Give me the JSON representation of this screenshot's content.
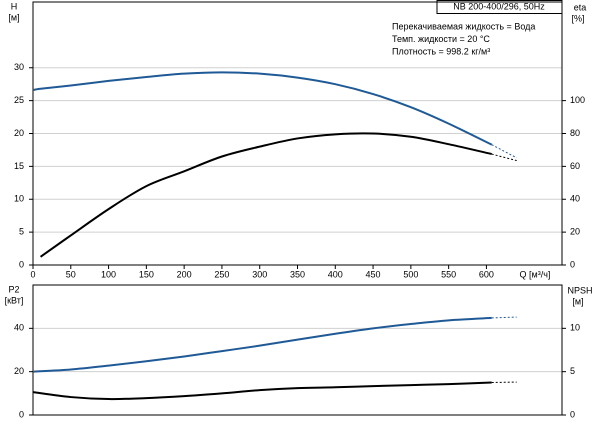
{
  "chart_data": [
    {
      "type": "line",
      "title": "NB 200-400/296, 50Hz",
      "annotations": [
        "Перекачиваемая жидкость = Вода",
        "Темп. жидкости = 20 °C",
        "Плотность = 998.2 кг/м³"
      ],
      "xlabel": "Q [м³/ч]",
      "ylabel": "H",
      "ylabel_unit": "[м]",
      "y2label": "eta",
      "y2label_unit": "[%]",
      "x": [
        0,
        10,
        50,
        100,
        150,
        200,
        250,
        300,
        350,
        400,
        450,
        500,
        550,
        607,
        640
      ],
      "xlim": [
        0,
        700
      ],
      "xticks": [
        0,
        50,
        100,
        150,
        200,
        250,
        300,
        350,
        400,
        450,
        500,
        550,
        600
      ],
      "ylim": [
        0,
        40
      ],
      "yticks": [
        0,
        5,
        10,
        15,
        20,
        25,
        30
      ],
      "y2lim": [
        0,
        160
      ],
      "y2ticks": [
        0,
        20,
        40,
        60,
        80,
        100
      ],
      "grid": true,
      "series": [
        {
          "color": "#1f5a96",
          "values": [
            26.6,
            26.8,
            27.3,
            28.0,
            28.6,
            29.1,
            29.3,
            29.1,
            28.5,
            27.5,
            26.0,
            24.0,
            21.5,
            18.3,
            16.3
          ]
        },
        {
          "color": "#000000",
          "axis": "y2",
          "values": [
            null,
            5,
            18,
            34,
            48,
            57,
            66,
            72,
            77,
            79.5,
            80,
            78,
            73.5,
            67.5,
            63.5
          ]
        }
      ]
    },
    {
      "type": "line",
      "ylabel": "P2",
      "ylabel_unit": "[кВт]",
      "y2label": "NPSH",
      "y2label_unit": "[м]",
      "x": [
        0,
        50,
        100,
        150,
        200,
        250,
        300,
        350,
        400,
        450,
        500,
        550,
        607,
        640
      ],
      "xlim": [
        0,
        700
      ],
      "ylim": [
        0,
        60
      ],
      "yticks": [
        0,
        20,
        40
      ],
      "y2lim": [
        0,
        15
      ],
      "y2ticks": [
        0,
        5,
        10
      ],
      "grid": true,
      "series": [
        {
          "color": "#1f5a96",
          "values": [
            20,
            21,
            22.8,
            24.8,
            27,
            29.5,
            32,
            34.8,
            37.5,
            40,
            42,
            43.7,
            44.8,
            45.2
          ]
        },
        {
          "color": "#000000",
          "axis": "y2",
          "values": [
            2.64,
            2.07,
            1.84,
            1.95,
            2.18,
            2.5,
            2.87,
            3.1,
            3.2,
            3.33,
            3.45,
            3.56,
            3.75,
            3.8
          ]
        }
      ]
    }
  ]
}
